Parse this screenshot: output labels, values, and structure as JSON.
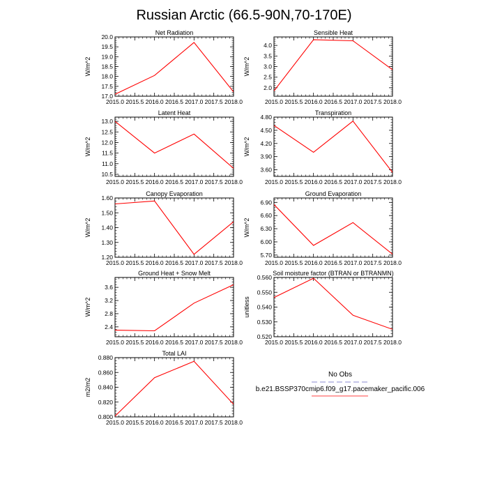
{
  "figure_title": "Russian Arctic (66.5-90N,70-170E)",
  "chart_data": [
    {
      "type": "line",
      "title": "Net Radiation",
      "ylabel": "W/m^2",
      "x": [
        2015,
        2016,
        2017,
        2018
      ],
      "values": [
        17.1,
        18.05,
        19.72,
        17.22
      ],
      "xlim": [
        2015,
        2018
      ],
      "ylim": [
        17.0,
        20.0
      ],
      "yticks": [
        "17.0",
        "17.5",
        "18.0",
        "18.5",
        "19.0",
        "19.5",
        "20.0"
      ],
      "xticks": [
        "2015.0",
        "2015.5",
        "2016.0",
        "2016.5",
        "2017.0",
        "2017.5",
        "2018.0"
      ],
      "series": [
        {
          "name": "b.e21.BSSP370cmip6.f09_g17.pacemaker_pacific.006",
          "color": "#ff0000"
        }
      ]
    },
    {
      "type": "line",
      "title": "Sensible Heat",
      "ylabel": "W/m^2",
      "x": [
        2015,
        2016,
        2017,
        2018
      ],
      "values": [
        1.85,
        4.27,
        4.22,
        2.85
      ],
      "xlim": [
        2015,
        2018
      ],
      "ylim": [
        1.6,
        4.4
      ],
      "yticks": [
        "2.0",
        "2.5",
        "3.0",
        "3.5",
        "4.0"
      ],
      "xticks": [
        "2015.0",
        "2015.5",
        "2016.0",
        "2016.5",
        "2017.0",
        "2017.5",
        "2018.0"
      ],
      "series": [
        {
          "name": "b.e21.BSSP370cmip6.f09_g17.pacemaker_pacific.006",
          "color": "#ff0000"
        }
      ]
    },
    {
      "type": "line",
      "title": "Latent Heat",
      "ylabel": "W/m^2",
      "x": [
        2015,
        2016,
        2017,
        2018
      ],
      "values": [
        13.0,
        11.5,
        12.4,
        10.78
      ],
      "xlim": [
        2015,
        2018
      ],
      "ylim": [
        10.4,
        13.2
      ],
      "yticks": [
        "10.5",
        "11.0",
        "11.5",
        "12.0",
        "12.5",
        "13.0"
      ],
      "xticks": [
        "2015.0",
        "2015.5",
        "2016.0",
        "2016.5",
        "2017.0",
        "2017.5",
        "2018.0"
      ],
      "series": [
        {
          "name": "b.e21.BSSP370cmip6.f09_g17.pacemaker_pacific.006",
          "color": "#ff0000"
        }
      ]
    },
    {
      "type": "line",
      "title": "Transpiration",
      "ylabel": "W/m^2",
      "x": [
        2015,
        2016,
        2017,
        2018
      ],
      "values": [
        4.61,
        4.0,
        4.71,
        3.54
      ],
      "xlim": [
        2015,
        2018
      ],
      "ylim": [
        3.45,
        4.8
      ],
      "yticks": [
        "3.60",
        "3.90",
        "4.20",
        "4.50",
        "4.80"
      ],
      "xticks": [
        "2015.0",
        "2015.5",
        "2016.0",
        "2016.5",
        "2017.0",
        "2017.5",
        "2018.0"
      ],
      "series": [
        {
          "name": "b.e21.BSSP370cmip6.f09_g17.pacemaker_pacific.006",
          "color": "#ff0000"
        }
      ]
    },
    {
      "type": "line",
      "title": "Canopy Evaporation",
      "ylabel": "W/m^2",
      "x": [
        2015,
        2016,
        2017,
        2018
      ],
      "values": [
        1.56,
        1.58,
        1.22,
        1.44
      ],
      "xlim": [
        2015,
        2018
      ],
      "ylim": [
        1.2,
        1.6
      ],
      "yticks": [
        "1.20",
        "1.30",
        "1.40",
        "1.50",
        "1.60"
      ],
      "xticks": [
        "2015.0",
        "2015.5",
        "2016.0",
        "2016.5",
        "2017.0",
        "2017.5",
        "2018.0"
      ],
      "series": [
        {
          "name": "b.e21.BSSP370cmip6.f09_g17.pacemaker_pacific.006",
          "color": "#ff0000"
        }
      ]
    },
    {
      "type": "line",
      "title": "Ground Evaporation",
      "ylabel": "W/m^2",
      "x": [
        2015,
        2016,
        2017,
        2018
      ],
      "values": [
        6.85,
        5.92,
        6.44,
        5.72
      ],
      "xlim": [
        2015,
        2018
      ],
      "ylim": [
        5.65,
        7.0
      ],
      "yticks": [
        "5.70",
        "6.00",
        "6.30",
        "6.60",
        "6.90"
      ],
      "xticks": [
        "2015.0",
        "2015.5",
        "2016.0",
        "2016.5",
        "2017.0",
        "2017.5",
        "2018.0"
      ],
      "series": [
        {
          "name": "b.e21.BSSP370cmip6.f09_g17.pacemaker_pacific.006",
          "color": "#ff0000"
        }
      ]
    },
    {
      "type": "line",
      "title": "Ground Heat + Snow Melt",
      "ylabel": "W/m^2",
      "x": [
        2015,
        2016,
        2017,
        2018
      ],
      "values": [
        2.3,
        2.28,
        3.12,
        3.68
      ],
      "xlim": [
        2015,
        2018
      ],
      "ylim": [
        2.1,
        3.9
      ],
      "yticks": [
        "2.4",
        "2.8",
        "3.2",
        "3.6"
      ],
      "xticks": [
        "2015.0",
        "2015.5",
        "2016.0",
        "2016.5",
        "2017.0",
        "2017.5",
        "2018.0"
      ],
      "series": [
        {
          "name": "b.e21.BSSP370cmip6.f09_g17.pacemaker_pacific.006",
          "color": "#ff0000"
        }
      ]
    },
    {
      "type": "line",
      "title": "Soil moisture factor (BTRAN or BTRANMN)",
      "ylabel": "unitless",
      "x": [
        2015,
        2016,
        2017,
        2018
      ],
      "values": [
        0.5465,
        0.5595,
        0.5345,
        0.525
      ],
      "xlim": [
        2015,
        2018
      ],
      "ylim": [
        0.52,
        0.56
      ],
      "yticks": [
        "0.520",
        "0.530",
        "0.540",
        "0.550",
        "0.560"
      ],
      "xticks": [
        "2015.0",
        "2015.5",
        "2016.0",
        "2016.5",
        "2017.0",
        "2017.5",
        "2018.0"
      ],
      "series": [
        {
          "name": "b.e21.BSSP370cmip6.f09_g17.pacemaker_pacific.006",
          "color": "#ff0000"
        }
      ]
    },
    {
      "type": "line",
      "title": "Total LAI",
      "ylabel": "m2/m2",
      "x": [
        2015,
        2016,
        2017,
        2018
      ],
      "values": [
        0.801,
        0.853,
        0.875,
        0.817
      ],
      "xlim": [
        2015,
        2018
      ],
      "ylim": [
        0.8,
        0.88
      ],
      "yticks": [
        "0.800",
        "0.820",
        "0.840",
        "0.860",
        "0.880"
      ],
      "xticks": [
        "2015.0",
        "2015.5",
        "2016.0",
        "2016.5",
        "2017.0",
        "2017.5",
        "2018.0"
      ],
      "series": [
        {
          "name": "b.e21.BSSP370cmip6.f09_g17.pacemaker_pacific.006",
          "color": "#ff0000"
        }
      ]
    }
  ],
  "legend": {
    "entries": [
      {
        "label": "No Obs",
        "color": "#b0b0e0",
        "style": "dashed"
      },
      {
        "label": "b.e21.BSSP370cmip6.f09_g17.pacemaker_pacific.006",
        "color": "#ff8080",
        "style": "solid"
      }
    ]
  }
}
